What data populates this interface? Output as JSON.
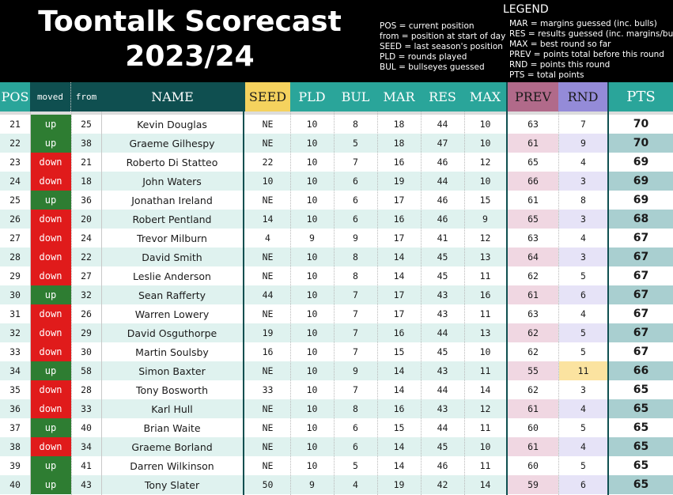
{
  "title": {
    "line1": "Toontalk Scorecast",
    "line2": "2023/24"
  },
  "legend": {
    "heading": "LEGEND",
    "left": [
      "POS = current position",
      "from = position at start of day",
      "SEED = last season's position",
      "PLD = rounds played",
      "BUL = bullseyes guessed"
    ],
    "right": [
      "MAR = margins guessed (inc. bulls)",
      "RES = results guessed (inc. margins/bulls)",
      "MAX = best round so far",
      "PREV = points total before this round",
      "RND = points this round",
      "PTS = total points"
    ]
  },
  "columns": {
    "pos": "POS",
    "moved": "moved",
    "from": "from",
    "name": "NAME",
    "seed": "SEED",
    "pld": "PLD",
    "bul": "BUL",
    "mar": "MAR",
    "res": "RES",
    "max": "MAX",
    "prev": "PREV",
    "rnd": "RND",
    "pts": "PTS"
  },
  "colors": {
    "header_teal": "#2aa59a",
    "header_dark": "#0f4f50",
    "up": "#2e7d32",
    "down": "#e01b1b",
    "seed": "#f5d25e",
    "prev": "#b16a8a",
    "rnd": "#948bd8"
  },
  "rows": [
    {
      "pos": "21",
      "moved": "up",
      "from": "25",
      "name": "Kevin Douglas",
      "seed": "NE",
      "pld": "10",
      "bul": "8",
      "mar": "18",
      "res": "44",
      "max": "10",
      "prev": "63",
      "rnd": "7",
      "pts": "70"
    },
    {
      "pos": "22",
      "moved": "up",
      "from": "38",
      "name": "Graeme Gilhespy",
      "seed": "NE",
      "pld": "10",
      "bul": "5",
      "mar": "18",
      "res": "47",
      "max": "10",
      "prev": "61",
      "rnd": "9",
      "pts": "70"
    },
    {
      "pos": "23",
      "moved": "down",
      "from": "21",
      "name": "Roberto Di Statteo",
      "seed": "22",
      "pld": "10",
      "bul": "7",
      "mar": "16",
      "res": "46",
      "max": "12",
      "prev": "65",
      "rnd": "4",
      "pts": "69"
    },
    {
      "pos": "24",
      "moved": "down",
      "from": "18",
      "name": "John Waters",
      "seed": "10",
      "pld": "10",
      "bul": "6",
      "mar": "19",
      "res": "44",
      "max": "10",
      "prev": "66",
      "rnd": "3",
      "pts": "69"
    },
    {
      "pos": "25",
      "moved": "up",
      "from": "36",
      "name": "Jonathan Ireland",
      "seed": "NE",
      "pld": "10",
      "bul": "6",
      "mar": "17",
      "res": "46",
      "max": "15",
      "prev": "61",
      "rnd": "8",
      "pts": "69"
    },
    {
      "pos": "26",
      "moved": "down",
      "from": "20",
      "name": "Robert Pentland",
      "seed": "14",
      "pld": "10",
      "bul": "6",
      "mar": "16",
      "res": "46",
      "max": "9",
      "prev": "65",
      "rnd": "3",
      "pts": "68"
    },
    {
      "pos": "27",
      "moved": "down",
      "from": "24",
      "name": "Trevor Milburn",
      "seed": "4",
      "pld": "9",
      "bul": "9",
      "mar": "17",
      "res": "41",
      "max": "12",
      "prev": "63",
      "rnd": "4",
      "pts": "67"
    },
    {
      "pos": "28",
      "moved": "down",
      "from": "22",
      "name": "David Smith",
      "seed": "NE",
      "pld": "10",
      "bul": "8",
      "mar": "14",
      "res": "45",
      "max": "13",
      "prev": "64",
      "rnd": "3",
      "pts": "67"
    },
    {
      "pos": "29",
      "moved": "down",
      "from": "27",
      "name": "Leslie Anderson",
      "seed": "NE",
      "pld": "10",
      "bul": "8",
      "mar": "14",
      "res": "45",
      "max": "11",
      "prev": "62",
      "rnd": "5",
      "pts": "67"
    },
    {
      "pos": "30",
      "moved": "up",
      "from": "32",
      "name": "Sean Rafferty",
      "seed": "44",
      "pld": "10",
      "bul": "7",
      "mar": "17",
      "res": "43",
      "max": "16",
      "prev": "61",
      "rnd": "6",
      "pts": "67"
    },
    {
      "pos": "31",
      "moved": "down",
      "from": "26",
      "name": "Warren Lowery",
      "seed": "NE",
      "pld": "10",
      "bul": "7",
      "mar": "17",
      "res": "43",
      "max": "11",
      "prev": "63",
      "rnd": "4",
      "pts": "67"
    },
    {
      "pos": "32",
      "moved": "down",
      "from": "29",
      "name": "David Osguthorpe",
      "seed": "19",
      "pld": "10",
      "bul": "7",
      "mar": "16",
      "res": "44",
      "max": "13",
      "prev": "62",
      "rnd": "5",
      "pts": "67"
    },
    {
      "pos": "33",
      "moved": "down",
      "from": "30",
      "name": "Martin Soulsby",
      "seed": "16",
      "pld": "10",
      "bul": "7",
      "mar": "15",
      "res": "45",
      "max": "10",
      "prev": "62",
      "rnd": "5",
      "pts": "67"
    },
    {
      "pos": "34",
      "moved": "up",
      "from": "58",
      "name": "Simon Baxter",
      "seed": "NE",
      "pld": "10",
      "bul": "9",
      "mar": "14",
      "res": "43",
      "max": "11",
      "prev": "55",
      "rnd": "11",
      "pts": "66"
    },
    {
      "pos": "35",
      "moved": "down",
      "from": "28",
      "name": "Tony Bosworth",
      "seed": "33",
      "pld": "10",
      "bul": "7",
      "mar": "14",
      "res": "44",
      "max": "14",
      "prev": "62",
      "rnd": "3",
      "pts": "65"
    },
    {
      "pos": "36",
      "moved": "down",
      "from": "33",
      "name": "Karl Hull",
      "seed": "NE",
      "pld": "10",
      "bul": "8",
      "mar": "16",
      "res": "43",
      "max": "12",
      "prev": "61",
      "rnd": "4",
      "pts": "65"
    },
    {
      "pos": "37",
      "moved": "up",
      "from": "40",
      "name": "Brian Waite",
      "seed": "NE",
      "pld": "10",
      "bul": "6",
      "mar": "15",
      "res": "44",
      "max": "11",
      "prev": "60",
      "rnd": "5",
      "pts": "65"
    },
    {
      "pos": "38",
      "moved": "down",
      "from": "34",
      "name": "Graeme Borland",
      "seed": "NE",
      "pld": "10",
      "bul": "6",
      "mar": "14",
      "res": "45",
      "max": "10",
      "prev": "61",
      "rnd": "4",
      "pts": "65"
    },
    {
      "pos": "39",
      "moved": "up",
      "from": "41",
      "name": "Darren Wilkinson",
      "seed": "NE",
      "pld": "10",
      "bul": "5",
      "mar": "14",
      "res": "46",
      "max": "11",
      "prev": "60",
      "rnd": "5",
      "pts": "65"
    },
    {
      "pos": "40",
      "moved": "up",
      "from": "43",
      "name": "Tony Slater",
      "seed": "50",
      "pld": "9",
      "bul": "4",
      "mar": "19",
      "res": "42",
      "max": "14",
      "prev": "59",
      "rnd": "6",
      "pts": "65"
    }
  ]
}
